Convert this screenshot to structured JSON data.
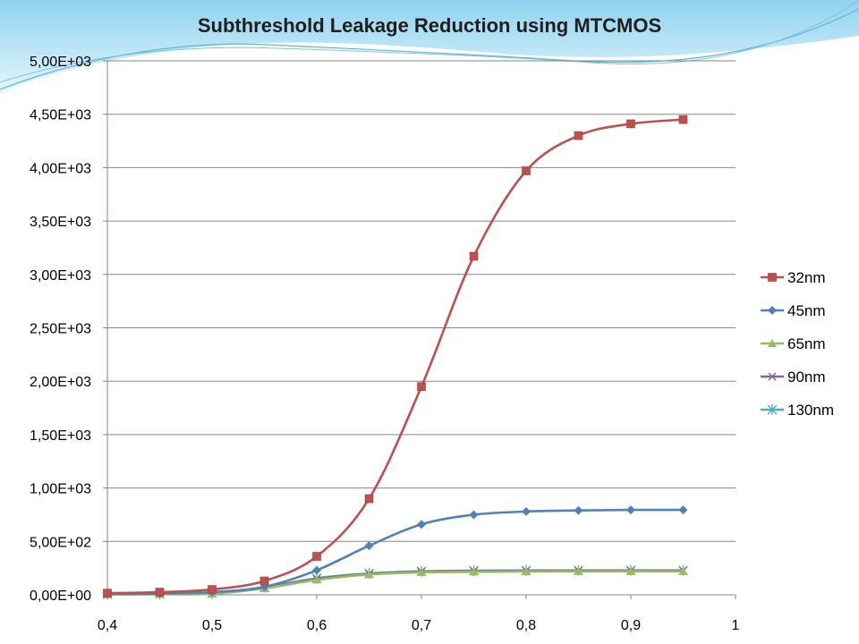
{
  "chart_data": {
    "type": "line",
    "title": "Subthreshold Leakage Reduction using MTCMOS",
    "xlabel": "",
    "ylabel": "",
    "xlim": [
      0.4,
      1.0
    ],
    "ylim": [
      0,
      5000
    ],
    "x_ticks": [
      "0,4",
      "0,5",
      "0,6",
      "0,7",
      "0,8",
      "0,9",
      "1"
    ],
    "y_ticks": [
      "0,00E+00",
      "5,00E+02",
      "1,00E+03",
      "1,50E+03",
      "2,00E+03",
      "2,50E+03",
      "3,00E+03",
      "3,50E+03",
      "4,00E+03",
      "4,50E+03",
      "5,00E+03"
    ],
    "grid": "horizontal",
    "legend_position": "right",
    "x": [
      0.4,
      0.45,
      0.5,
      0.55,
      0.6,
      0.65,
      0.7,
      0.75,
      0.8,
      0.85,
      0.9,
      0.95
    ],
    "series": [
      {
        "name": "32nm",
        "color": "#c0504d",
        "marker": "square",
        "values": [
          15,
          25,
          50,
          130,
          360,
          900,
          1950,
          3170,
          3970,
          4300,
          4410,
          4450
        ]
      },
      {
        "name": "45nm",
        "color": "#4f81bd",
        "marker": "diamond",
        "values": [
          8,
          12,
          25,
          75,
          230,
          460,
          660,
          750,
          780,
          790,
          795,
          795
        ]
      },
      {
        "name": "65nm",
        "color": "#9bbb59",
        "marker": "triangle",
        "values": [
          3,
          5,
          10,
          60,
          140,
          190,
          210,
          215,
          218,
          220,
          220,
          220
        ]
      },
      {
        "name": "90nm",
        "color": "#8064a2",
        "marker": "x",
        "values": [
          4,
          6,
          12,
          65,
          150,
          195,
          215,
          222,
          225,
          226,
          226,
          226
        ]
      },
      {
        "name": "130nm",
        "color": "#4bacc6",
        "marker": "star",
        "values": [
          5,
          8,
          15,
          70,
          155,
          200,
          220,
          226,
          228,
          229,
          229,
          229
        ]
      }
    ]
  }
}
